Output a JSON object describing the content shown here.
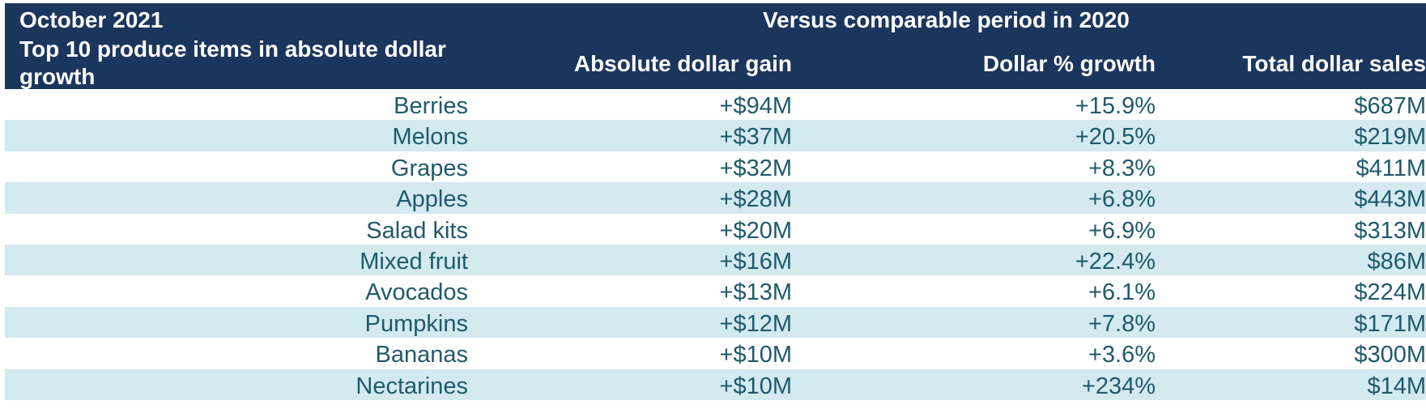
{
  "chart_data": {
    "type": "table",
    "header": {
      "month": "October 2021",
      "title": "Top 10 produce items in absolute dollar growth",
      "comparison": "Versus comparable period in 2020"
    },
    "columns": [
      "Absolute dollar gain",
      "Dollar % growth",
      "Total dollar sales"
    ],
    "rows": [
      {
        "item": "Berries",
        "gain": "+$94M",
        "growth": "+15.9%",
        "sales": "$687M"
      },
      {
        "item": "Melons",
        "gain": "+$37M",
        "growth": "+20.5%",
        "sales": "$219M"
      },
      {
        "item": "Grapes",
        "gain": "+$32M",
        "growth": "+8.3%",
        "sales": "$411M"
      },
      {
        "item": "Apples",
        "gain": "+$28M",
        "growth": "+6.8%",
        "sales": "$443M"
      },
      {
        "item": "Salad kits",
        "gain": "+$20M",
        "growth": "+6.9%",
        "sales": "$313M"
      },
      {
        "item": "Mixed fruit",
        "gain": "+$16M",
        "growth": "+22.4%",
        "sales": "$86M"
      },
      {
        "item": "Avocados",
        "gain": "+$13M",
        "growth": "+6.1%",
        "sales": "$224M"
      },
      {
        "item": "Pumpkins",
        "gain": "+$12M",
        "growth": "+7.8%",
        "sales": "$171M"
      },
      {
        "item": "Bananas",
        "gain": "+$10M",
        "growth": "+3.6%",
        "sales": "$300M"
      },
      {
        "item": "Nectarines",
        "gain": "+$10M",
        "growth": "+234%",
        "sales": "$14M"
      }
    ]
  },
  "colors": {
    "header_background": "#1b365d",
    "header_text": "#ffffff",
    "row_text": "#1f5a6b",
    "alt_row_background": "#d3eaf1"
  }
}
